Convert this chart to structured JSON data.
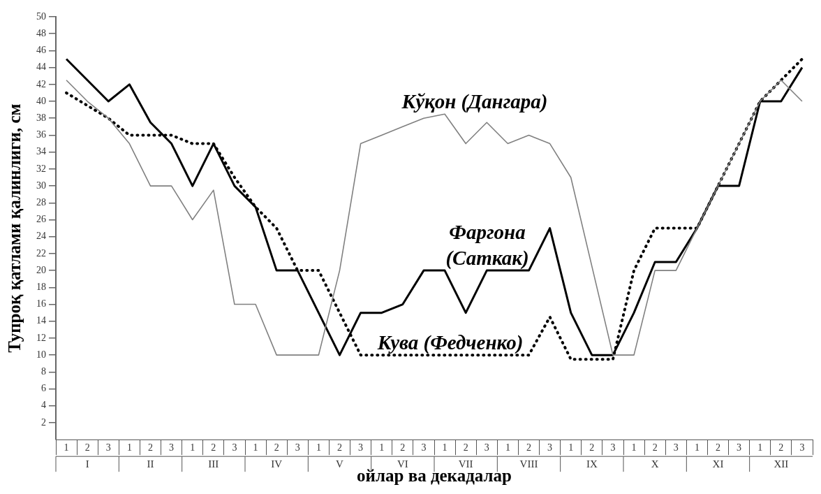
{
  "chart_data": {
    "type": "line",
    "xlabel": "ойлар ва декадалар",
    "ylabel": "Тупроқ қатлами қалинлиги, см",
    "categories": [
      "1",
      "2",
      "3",
      "1",
      "2",
      "3",
      "1",
      "2",
      "3",
      "1",
      "2",
      "3",
      "1",
      "2",
      "3",
      "1",
      "2",
      "3",
      "1",
      "2",
      "3",
      "1",
      "2",
      "3",
      "1",
      "2",
      "3",
      "1",
      "2",
      "3",
      "1",
      "2",
      "3",
      "1",
      "2",
      "3"
    ],
    "annotations": [
      "I",
      "II",
      "III",
      "IV",
      "V",
      "VI",
      "VII",
      "VIII",
      "IX",
      "X",
      "XI",
      "XII"
    ],
    "ylim": [
      0,
      50
    ],
    "yticks": [
      2,
      4,
      6,
      8,
      10,
      12,
      14,
      16,
      18,
      20,
      22,
      24,
      26,
      28,
      30,
      32,
      34,
      36,
      38,
      40,
      42,
      44,
      46,
      48,
      50
    ],
    "grid": false,
    "legend": false,
    "marker": "none",
    "series": [
      {
        "name": "Кўқон (Дангара)",
        "color": "#808080",
        "line_style": "solid",
        "values": [
          42.5,
          40,
          38,
          35,
          30,
          30,
          26,
          29.5,
          16,
          16,
          10,
          10,
          10,
          20,
          35,
          36,
          37,
          38,
          38.5,
          35,
          37.5,
          35,
          36,
          35,
          31,
          20.5,
          10,
          10,
          20,
          20,
          25,
          30,
          35,
          40,
          42.5,
          40
        ]
      },
      {
        "name": "Фаргона (Саткак)",
        "color": "#000000",
        "line_style": "solid",
        "values": [
          45,
          42.5,
          40,
          42,
          37.5,
          35,
          30,
          35,
          30,
          27.5,
          20,
          20,
          15,
          10,
          15,
          15,
          16,
          20,
          20,
          15,
          20,
          20,
          20,
          25,
          15,
          10,
          10,
          15,
          21,
          21,
          25,
          30,
          30,
          40,
          40,
          44
        ]
      },
      {
        "name": "Кува (Федченко)",
        "color": "#000000",
        "line_style": "dotted",
        "values": [
          41,
          39.5,
          38,
          36,
          36,
          36,
          35,
          35,
          31,
          27.5,
          25,
          20,
          20,
          15,
          10,
          10,
          10,
          10,
          10,
          10,
          10,
          10,
          10,
          14.5,
          9.5,
          9.5,
          9.5,
          20,
          25,
          25,
          25,
          30,
          35,
          40,
          42.5,
          45
        ]
      }
    ]
  }
}
